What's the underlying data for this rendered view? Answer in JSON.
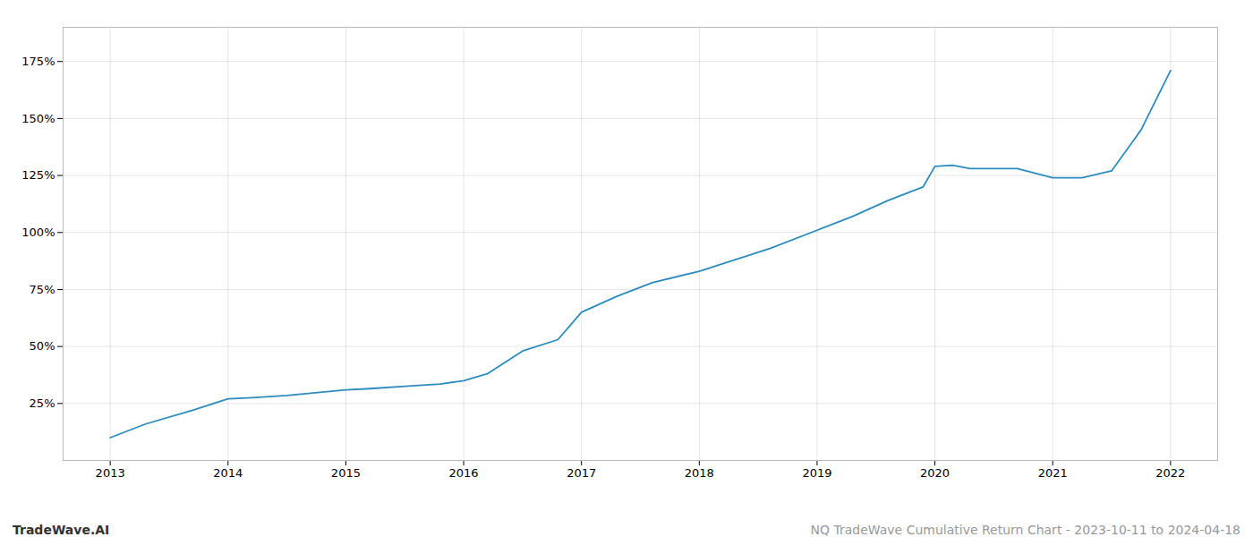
{
  "chart_data": {
    "type": "line",
    "title": "NQ TradeWave Cumulative Return Chart - 2023-10-11 to 2024-04-18",
    "annotations": [
      "TradeWave.AI"
    ],
    "x": [
      2013.0,
      2013.3,
      2013.7,
      2014.0,
      2014.2,
      2014.5,
      2014.8,
      2015.0,
      2015.2,
      2015.5,
      2015.8,
      2016.0,
      2016.2,
      2016.5,
      2016.8,
      2017.0,
      2017.3,
      2017.6,
      2018.0,
      2018.3,
      2018.6,
      2019.0,
      2019.3,
      2019.6,
      2019.9,
      2020.0,
      2020.15,
      2020.3,
      2020.5,
      2020.7,
      2021.0,
      2021.25,
      2021.5,
      2021.75,
      2022.0
    ],
    "values": [
      10,
      16,
      22,
      27,
      27.5,
      28.5,
      30,
      31,
      31.5,
      32.5,
      33.5,
      35,
      38,
      48,
      53,
      65,
      72,
      78,
      83,
      88,
      93,
      101,
      107,
      114,
      120,
      129,
      129.5,
      128,
      128,
      128,
      124,
      124,
      127,
      145,
      171
    ],
    "color": "#2b8cbe",
    "xlim": [
      2012.6,
      2022.4
    ],
    "ylim": [
      0,
      190
    ],
    "xticks": [
      2013,
      2014,
      2015,
      2016,
      2017,
      2018,
      2019,
      2020,
      2021,
      2022
    ],
    "yticks": [
      {
        "value": 25,
        "label": "25%"
      },
      {
        "value": 50,
        "label": "50%"
      },
      {
        "value": 75,
        "label": "75%"
      },
      {
        "value": 100,
        "label": "100%"
      },
      {
        "value": 125,
        "label": "125%"
      },
      {
        "value": 150,
        "label": "150%"
      },
      {
        "value": 175,
        "label": "175%"
      }
    ],
    "grid": true
  }
}
